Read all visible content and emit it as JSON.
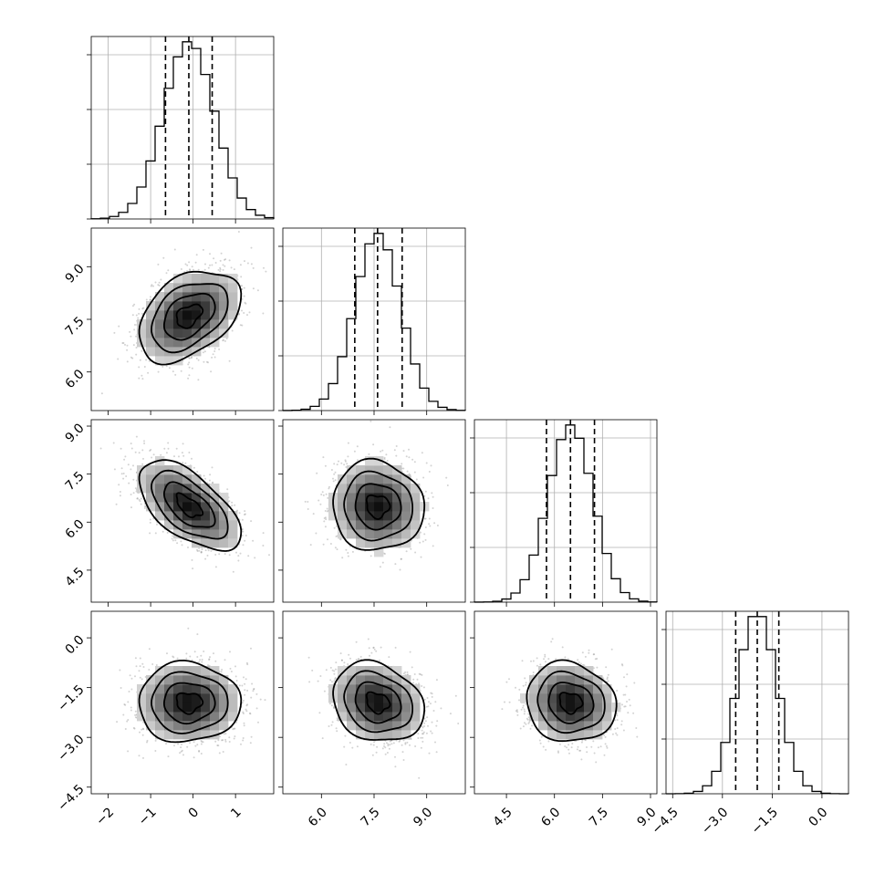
{
  "chart_data": {
    "type": "corner",
    "parameters": [
      {
        "mean": -0.1,
        "std": 0.6,
        "range": [
          -2.4,
          1.9
        ],
        "quantiles": [
          -0.65,
          -0.1,
          0.45
        ],
        "ticks": [
          -2,
          -1,
          0,
          1
        ],
        "tick_labels": [
          "−2",
          "−1",
          "0",
          "1"
        ]
      },
      {
        "mean": 7.6,
        "std": 0.65,
        "range": [
          4.9,
          10.1
        ],
        "quantiles": [
          6.95,
          7.6,
          8.3
        ],
        "ticks": [
          6.0,
          7.5,
          9.0
        ],
        "tick_labels": [
          "6.0",
          "7.5",
          "9.0"
        ]
      },
      {
        "mean": 6.5,
        "std": 0.7,
        "range": [
          3.5,
          9.2
        ],
        "quantiles": [
          5.75,
          6.5,
          7.25
        ],
        "ticks": [
          4.5,
          6.0,
          7.5,
          9.0
        ],
        "tick_labels": [
          "4.5",
          "6.0",
          "7.5",
          "9.0"
        ]
      },
      {
        "mean": -1.95,
        "std": 0.6,
        "range": [
          -4.7,
          0.8
        ],
        "quantiles": [
          -2.6,
          -1.95,
          -1.3
        ],
        "ticks": [
          -4.5,
          -3.0,
          -1.5,
          0.0
        ],
        "tick_labels": [
          "−4.5",
          "−3.0",
          "−1.5",
          "0.0"
        ]
      }
    ],
    "correlations": [
      [
        1,
        0.4,
        -0.6,
        0.0
      ],
      [
        0.4,
        1,
        -0.05,
        -0.2
      ],
      [
        -0.6,
        -0.05,
        1,
        -0.1
      ],
      [
        0.0,
        -0.2,
        -0.1,
        1
      ]
    ],
    "histogram_bins": 20,
    "grid": true,
    "colors": {
      "ink": "#000000",
      "grid": "#b0b0b0",
      "scatter": "#808080"
    }
  }
}
